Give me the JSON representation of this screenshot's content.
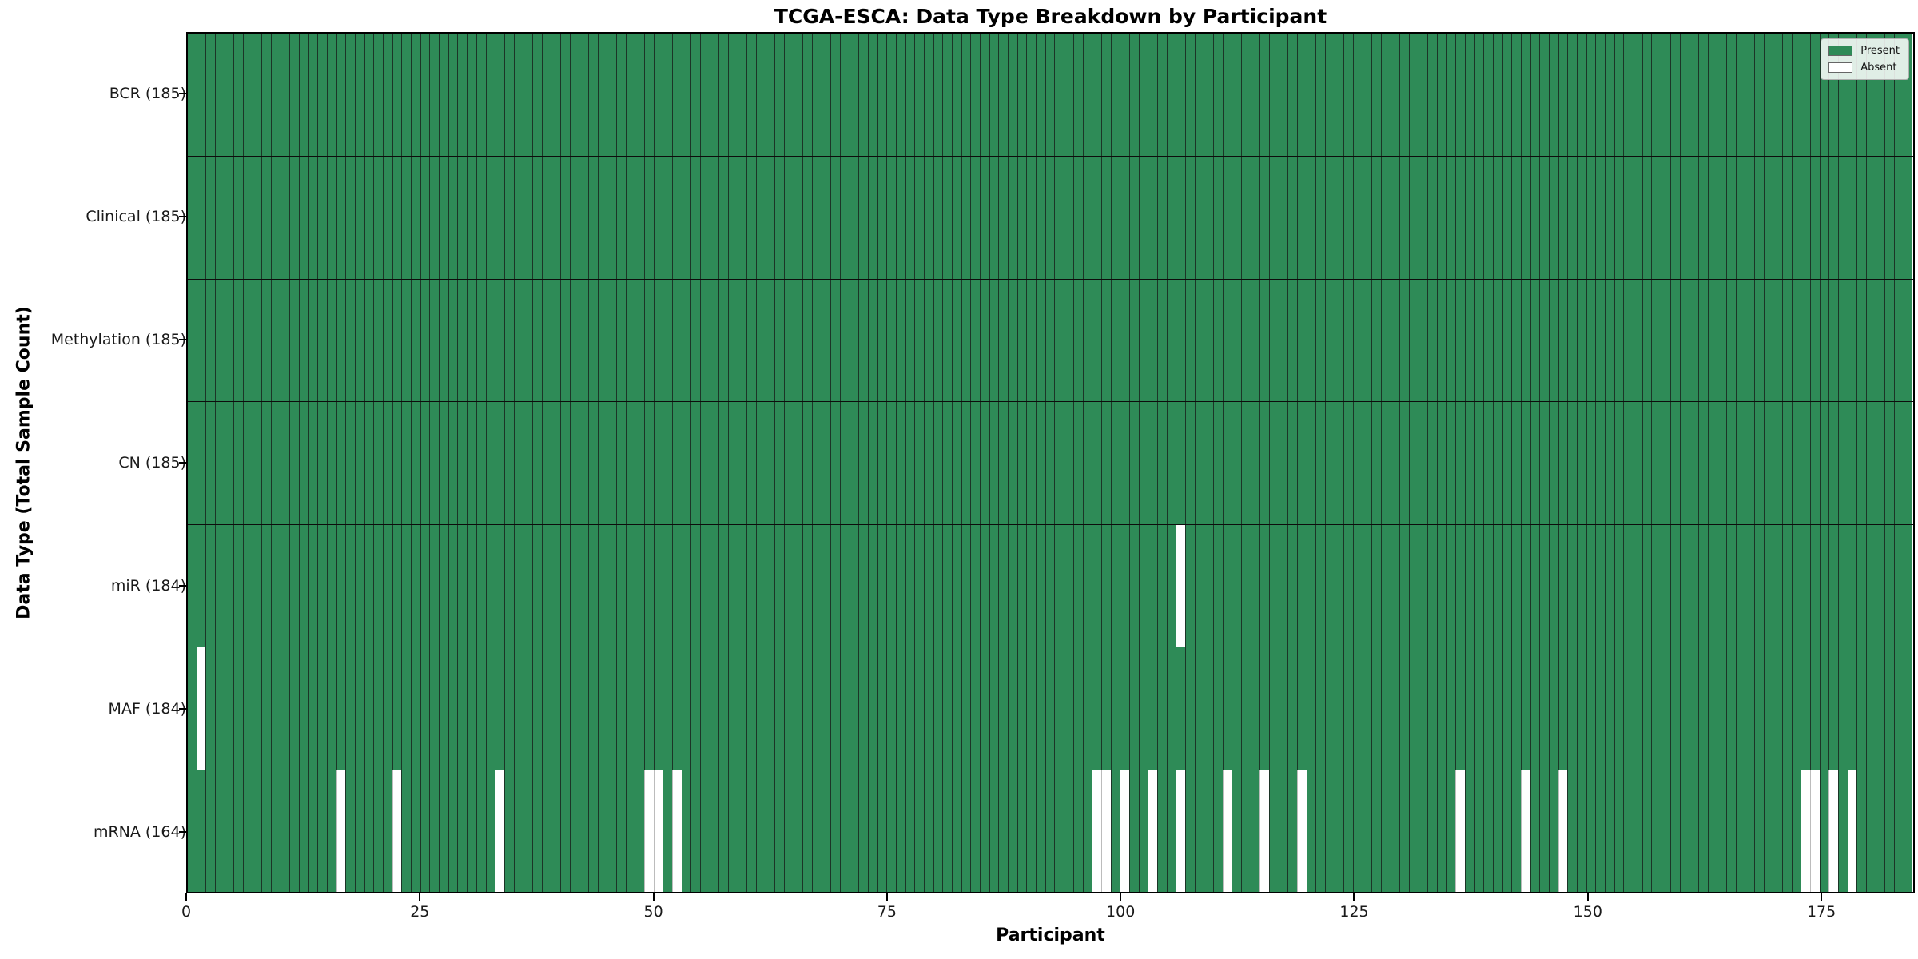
{
  "colors": {
    "present": "#2e8b57",
    "absent": "#ffffff",
    "bar_edge": "#1c3527",
    "row_divider": "#0d0d0d",
    "spine": "#000000"
  },
  "chart_data": {
    "type": "heatmap",
    "title": "TCGA-ESCA: Data Type Breakdown by Participant",
    "xlabel": "Participant",
    "ylabel": "Data Type (Total Sample Count)",
    "n_participants": 185,
    "x_ticks": [
      0,
      25,
      50,
      75,
      100,
      125,
      150,
      175
    ],
    "xlim": [
      0,
      185
    ],
    "grid": false,
    "legend_position": "upper right",
    "legend": [
      {
        "label": "Present",
        "color": "#2e8b57"
      },
      {
        "label": "Absent",
        "color": "#ffffff"
      }
    ],
    "rows": [
      {
        "label": "BCR (185)",
        "category": "BCR",
        "total": 185,
        "absent_participants": []
      },
      {
        "label": "Clinical (185)",
        "category": "Clinical",
        "total": 185,
        "absent_participants": []
      },
      {
        "label": "Methylation (185)",
        "category": "Methylation",
        "total": 185,
        "absent_participants": []
      },
      {
        "label": "CN (185)",
        "category": "CN",
        "total": 185,
        "absent_participants": []
      },
      {
        "label": "miR (184)",
        "category": "miR",
        "total": 184,
        "absent_participants": [
          106
        ]
      },
      {
        "label": "MAF (184)",
        "category": "MAF",
        "total": 184,
        "absent_participants": [
          1
        ]
      },
      {
        "label": "mRNA (164)",
        "category": "mRNA",
        "total": 164,
        "absent_participants": [
          16,
          22,
          33,
          49,
          50,
          52,
          97,
          98,
          100,
          103,
          106,
          111,
          115,
          119,
          136,
          143,
          147,
          173,
          174,
          176,
          178
        ]
      }
    ]
  }
}
